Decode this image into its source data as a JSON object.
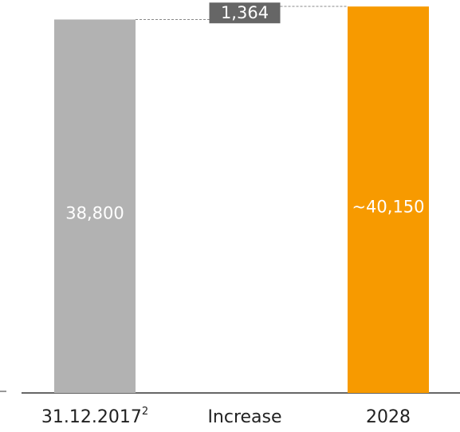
{
  "chart_data": {
    "type": "waterfall",
    "categories": [
      "31.12.2017",
      "Increase",
      "2028"
    ],
    "category_notes": [
      "2",
      null,
      null
    ],
    "values": [
      38800,
      1364,
      40150
    ],
    "value_labels": [
      "38,800",
      "1,364",
      "~40,150"
    ],
    "measures": [
      "total",
      "relative",
      "total"
    ],
    "colors": [
      "#b2b2b2",
      "#666666",
      "#f79a00"
    ]
  }
}
